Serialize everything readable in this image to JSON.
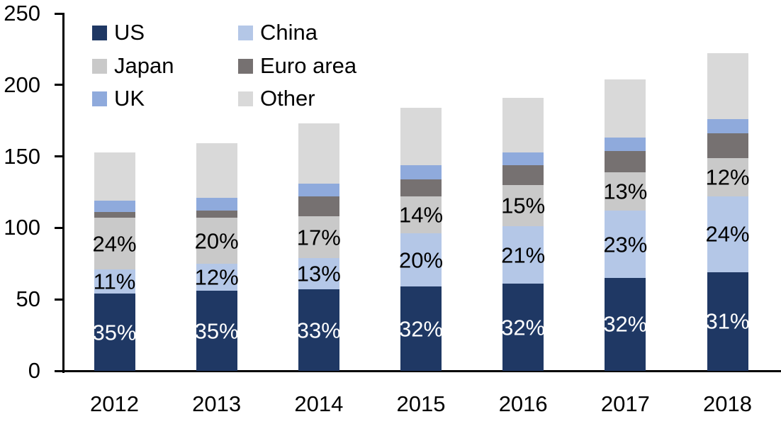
{
  "chart_data": {
    "type": "bar",
    "stacked": true,
    "title": "",
    "xlabel": "",
    "ylabel": "",
    "categories": [
      "2012",
      "2013",
      "2014",
      "2015",
      "2016",
      "2017",
      "2018"
    ],
    "series": [
      {
        "name": "US",
        "color": "#1F3864",
        "values": [
          54,
          56,
          57,
          59,
          61,
          65,
          69
        ],
        "labels": [
          "35%",
          "35%",
          "33%",
          "32%",
          "32%",
          "32%",
          "31%"
        ],
        "label_color": "#FFFFFF"
      },
      {
        "name": "China",
        "color": "#B4C7E7",
        "values": [
          17,
          19,
          22,
          37,
          40,
          47,
          53
        ],
        "labels": [
          "11%",
          "12%",
          "13%",
          "20%",
          "21%",
          "23%",
          "24%"
        ],
        "label_color": "#000000"
      },
      {
        "name": "Japan",
        "color": "#C9C9C9",
        "values": [
          36,
          32,
          29,
          26,
          29,
          27,
          27
        ],
        "labels": [
          "24%",
          "20%",
          "17%",
          "14%",
          "15%",
          "13%",
          "12%"
        ],
        "label_color": "#000000"
      },
      {
        "name": "Euro area",
        "color": "#767171",
        "values": [
          4,
          5,
          14,
          12,
          14,
          15,
          17
        ],
        "labels": null,
        "label_color": null
      },
      {
        "name": "UK",
        "color": "#8FAADC",
        "values": [
          8,
          9,
          9,
          10,
          9,
          9,
          10
        ],
        "labels": null,
        "label_color": null
      },
      {
        "name": "Other",
        "color": "#D9D9D9",
        "values": [
          34,
          38,
          42,
          40,
          38,
          41,
          46
        ],
        "labels": null,
        "label_color": null
      }
    ],
    "totals": [
      153,
      159,
      173,
      184,
      191,
      204,
      222
    ],
    "y_axis": {
      "min": 0,
      "max": 250,
      "ticks": [
        "0",
        "50",
        "100",
        "150",
        "200",
        "250"
      ],
      "tick_values": [
        0,
        50,
        100,
        150,
        200,
        250
      ],
      "gridlines": false
    },
    "legend": {
      "position": "top-left",
      "columns": 2,
      "order": [
        "US",
        "China",
        "Japan",
        "Euro area",
        "UK",
        "Other"
      ]
    }
  }
}
